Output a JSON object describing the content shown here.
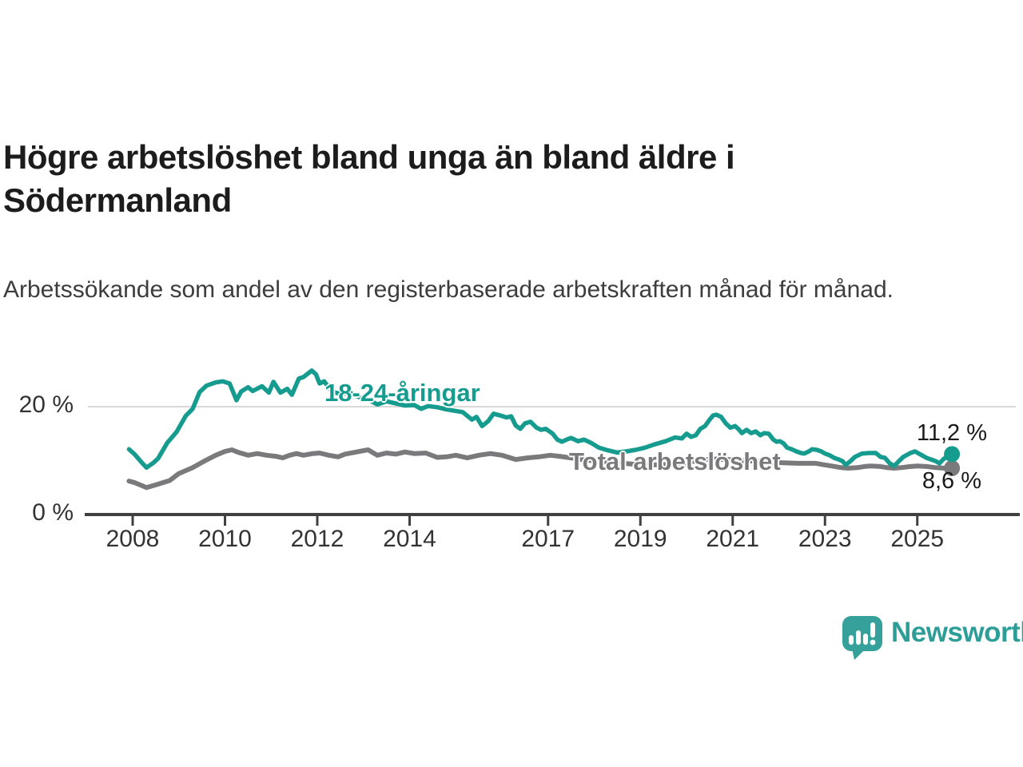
{
  "title": "Högre arbetslöshet bland unga än bland äldre i Södermanland",
  "subtitle": "Arbetssökande som andel av den registerbaserade arbetskraften månad för månad.",
  "branding": {
    "name": "Newsworthy",
    "logo_color": "#35a19a",
    "text_color": "#2d9e97"
  },
  "chart_data": {
    "type": "line",
    "title": "Högre arbetslöshet bland unga än bland äldre i Södermanland",
    "subtitle": "Arbetssökande som andel av den registerbaserade arbetskraften månad för månad.",
    "unit": "%",
    "x_range": [
      2007.9,
      2025.85
    ],
    "ylim": [
      0,
      30
    ],
    "grid": "horizontal-20-only",
    "gridlines": [
      20
    ],
    "y_ticks": [
      {
        "value": 20,
        "label": "20 %"
      },
      {
        "value": 0,
        "label": "0 %"
      }
    ],
    "x_ticks": [
      {
        "year": 2008,
        "label": "2008"
      },
      {
        "year": 2010,
        "label": "2010"
      },
      {
        "year": 2012,
        "label": "2012"
      },
      {
        "year": 2014,
        "label": "2014"
      },
      {
        "year": 2017,
        "label": "2017"
      },
      {
        "year": 2019,
        "label": "2019"
      },
      {
        "year": 2021,
        "label": "2021"
      },
      {
        "year": 2023,
        "label": "2023"
      },
      {
        "year": 2025,
        "label": "2025"
      }
    ],
    "legend_position": "inline-labels-on-lines",
    "series": [
      {
        "id": "total",
        "name": "Total arbetslöshet",
        "color": "#7a7a7c",
        "width": 6,
        "end_value": 8.6,
        "end_label": "8,6 %",
        "points": [
          [
            2007.92,
            6.2
          ],
          [
            2008.05,
            5.9
          ],
          [
            2008.3,
            5.0
          ],
          [
            2008.5,
            5.5
          ],
          [
            2008.8,
            6.3
          ],
          [
            2009.0,
            7.6
          ],
          [
            2009.3,
            8.7
          ],
          [
            2009.55,
            9.9
          ],
          [
            2009.8,
            11.0
          ],
          [
            2010.0,
            11.7
          ],
          [
            2010.15,
            12.0
          ],
          [
            2010.3,
            11.5
          ],
          [
            2010.5,
            11.0
          ],
          [
            2010.7,
            11.3
          ],
          [
            2010.9,
            11.0
          ],
          [
            2011.1,
            10.8
          ],
          [
            2011.25,
            10.5
          ],
          [
            2011.4,
            11.0
          ],
          [
            2011.55,
            11.3
          ],
          [
            2011.7,
            11.0
          ],
          [
            2011.9,
            11.3
          ],
          [
            2012.05,
            11.4
          ],
          [
            2012.25,
            11.0
          ],
          [
            2012.45,
            10.7
          ],
          [
            2012.6,
            11.2
          ],
          [
            2012.85,
            11.6
          ],
          [
            2013.1,
            12.0
          ],
          [
            2013.3,
            11.0
          ],
          [
            2013.5,
            11.4
          ],
          [
            2013.7,
            11.2
          ],
          [
            2013.9,
            11.6
          ],
          [
            2014.1,
            11.3
          ],
          [
            2014.35,
            11.4
          ],
          [
            2014.6,
            10.6
          ],
          [
            2014.8,
            10.7
          ],
          [
            2015.0,
            11.0
          ],
          [
            2015.25,
            10.5
          ],
          [
            2015.5,
            11.0
          ],
          [
            2015.75,
            11.3
          ],
          [
            2016.0,
            11.0
          ],
          [
            2016.3,
            10.2
          ],
          [
            2016.55,
            10.5
          ],
          [
            2016.8,
            10.7
          ],
          [
            2017.05,
            11.0
          ],
          [
            2017.25,
            10.8
          ],
          [
            2017.5,
            10.5
          ],
          [
            2017.8,
            10.1
          ],
          [
            2018.1,
            9.9
          ],
          [
            2018.5,
            9.6
          ],
          [
            2018.9,
            9.3
          ],
          [
            2019.3,
            9.2
          ],
          [
            2019.7,
            9.3
          ],
          [
            2020.0,
            9.6
          ],
          [
            2020.3,
            10.1
          ],
          [
            2020.6,
            10.3
          ],
          [
            2020.9,
            10.2
          ],
          [
            2021.2,
            10.0
          ],
          [
            2021.5,
            9.9
          ],
          [
            2021.8,
            9.7
          ],
          [
            2022.1,
            9.6
          ],
          [
            2022.4,
            9.5
          ],
          [
            2022.8,
            9.5
          ],
          [
            2023.0,
            9.2
          ],
          [
            2023.15,
            9.0
          ],
          [
            2023.35,
            8.7
          ],
          [
            2023.5,
            8.6
          ],
          [
            2023.7,
            8.7
          ],
          [
            2023.85,
            8.9
          ],
          [
            2024.0,
            9.0
          ],
          [
            2024.2,
            8.9
          ],
          [
            2024.35,
            8.7
          ],
          [
            2024.5,
            8.6
          ],
          [
            2024.65,
            8.7
          ],
          [
            2024.85,
            8.9
          ],
          [
            2025.0,
            9.0
          ],
          [
            2025.2,
            8.9
          ],
          [
            2025.4,
            8.7
          ],
          [
            2025.6,
            8.6
          ],
          [
            2025.75,
            8.6
          ]
        ]
      },
      {
        "id": "youth",
        "name": "18-24-åringar",
        "color": "#169b8f",
        "width": 5.5,
        "end_value": 11.2,
        "end_label": "11,2 %",
        "points": [
          [
            2007.92,
            12.1
          ],
          [
            2008.04,
            11.2
          ],
          [
            2008.2,
            9.6
          ],
          [
            2008.3,
            8.7
          ],
          [
            2008.45,
            9.6
          ],
          [
            2008.55,
            10.4
          ],
          [
            2008.75,
            13.3
          ],
          [
            2008.95,
            15.3
          ],
          [
            2009.15,
            18.3
          ],
          [
            2009.3,
            19.6
          ],
          [
            2009.45,
            22.7
          ],
          [
            2009.6,
            23.9
          ],
          [
            2009.8,
            24.5
          ],
          [
            2009.95,
            24.7
          ],
          [
            2010.1,
            24.3
          ],
          [
            2010.25,
            21.2
          ],
          [
            2010.35,
            22.8
          ],
          [
            2010.5,
            23.6
          ],
          [
            2010.6,
            22.9
          ],
          [
            2010.8,
            23.8
          ],
          [
            2010.95,
            22.6
          ],
          [
            2011.05,
            24.6
          ],
          [
            2011.2,
            22.6
          ],
          [
            2011.35,
            23.3
          ],
          [
            2011.45,
            22.2
          ],
          [
            2011.6,
            25.2
          ],
          [
            2011.7,
            25.5
          ],
          [
            2011.88,
            26.7
          ],
          [
            2011.97,
            26.0
          ],
          [
            2012.05,
            24.3
          ],
          [
            2012.15,
            24.7
          ],
          [
            2012.3,
            22.9
          ],
          [
            2012.5,
            22.3
          ],
          [
            2012.7,
            22.6
          ],
          [
            2012.9,
            21.8
          ],
          [
            2013.1,
            21.4
          ],
          [
            2013.3,
            20.4
          ],
          [
            2013.5,
            21.0
          ],
          [
            2013.7,
            20.6
          ],
          [
            2013.9,
            20.2
          ],
          [
            2014.1,
            20.3
          ],
          [
            2014.25,
            19.6
          ],
          [
            2014.4,
            20.1
          ],
          [
            2014.6,
            19.9
          ],
          [
            2014.8,
            19.5
          ],
          [
            2015.0,
            19.2
          ],
          [
            2015.15,
            19.0
          ],
          [
            2015.35,
            17.6
          ],
          [
            2015.45,
            18.1
          ],
          [
            2015.57,
            16.4
          ],
          [
            2015.7,
            17.3
          ],
          [
            2015.82,
            18.7
          ],
          [
            2015.95,
            18.4
          ],
          [
            2016.1,
            18.0
          ],
          [
            2016.2,
            18.2
          ],
          [
            2016.3,
            16.5
          ],
          [
            2016.4,
            15.9
          ],
          [
            2016.5,
            16.9
          ],
          [
            2016.62,
            17.2
          ],
          [
            2016.75,
            16.1
          ],
          [
            2016.85,
            15.7
          ],
          [
            2016.95,
            15.9
          ],
          [
            2017.1,
            15.0
          ],
          [
            2017.2,
            13.9
          ],
          [
            2017.3,
            13.5
          ],
          [
            2017.4,
            13.9
          ],
          [
            2017.5,
            14.2
          ],
          [
            2017.65,
            13.6
          ],
          [
            2017.78,
            13.9
          ],
          [
            2017.95,
            13.2
          ],
          [
            2018.1,
            12.4
          ],
          [
            2018.3,
            11.9
          ],
          [
            2018.5,
            11.5
          ],
          [
            2018.7,
            11.7
          ],
          [
            2018.9,
            12.0
          ],
          [
            2019.1,
            12.4
          ],
          [
            2019.3,
            13.0
          ],
          [
            2019.55,
            13.6
          ],
          [
            2019.75,
            14.3
          ],
          [
            2019.9,
            14.1
          ],
          [
            2020.0,
            15.0
          ],
          [
            2020.1,
            14.4
          ],
          [
            2020.2,
            14.7
          ],
          [
            2020.3,
            15.9
          ],
          [
            2020.4,
            16.4
          ],
          [
            2020.5,
            17.6
          ],
          [
            2020.58,
            18.4
          ],
          [
            2020.65,
            18.5
          ],
          [
            2020.75,
            18.1
          ],
          [
            2020.85,
            16.9
          ],
          [
            2020.95,
            16.1
          ],
          [
            2021.05,
            16.4
          ],
          [
            2021.12,
            15.9
          ],
          [
            2021.2,
            15.1
          ],
          [
            2021.3,
            15.7
          ],
          [
            2021.4,
            15.1
          ],
          [
            2021.5,
            15.4
          ],
          [
            2021.6,
            14.7
          ],
          [
            2021.68,
            15.1
          ],
          [
            2021.78,
            15.0
          ],
          [
            2021.88,
            13.9
          ],
          [
            2021.95,
            13.5
          ],
          [
            2022.02,
            13.6
          ],
          [
            2022.1,
            13.2
          ],
          [
            2022.18,
            12.4
          ],
          [
            2022.28,
            12.1
          ],
          [
            2022.38,
            11.7
          ],
          [
            2022.48,
            11.4
          ],
          [
            2022.55,
            11.3
          ],
          [
            2022.65,
            11.7
          ],
          [
            2022.72,
            12.1
          ],
          [
            2022.82,
            12.0
          ],
          [
            2022.92,
            11.7
          ],
          [
            2023.0,
            11.3
          ],
          [
            2023.1,
            11.0
          ],
          [
            2023.2,
            10.5
          ],
          [
            2023.3,
            10.2
          ],
          [
            2023.38,
            9.9
          ],
          [
            2023.45,
            9.2
          ],
          [
            2023.55,
            9.9
          ],
          [
            2023.65,
            10.7
          ],
          [
            2023.8,
            11.3
          ],
          [
            2023.95,
            11.4
          ],
          [
            2024.1,
            11.4
          ],
          [
            2024.2,
            10.7
          ],
          [
            2024.3,
            10.5
          ],
          [
            2024.4,
            9.5
          ],
          [
            2024.5,
            9.0
          ],
          [
            2024.6,
            9.9
          ],
          [
            2024.7,
            10.7
          ],
          [
            2024.85,
            11.4
          ],
          [
            2024.95,
            11.7
          ],
          [
            2025.1,
            11.0
          ],
          [
            2025.2,
            10.5
          ],
          [
            2025.3,
            10.2
          ],
          [
            2025.4,
            9.9
          ],
          [
            2025.48,
            9.5
          ],
          [
            2025.56,
            10.2
          ],
          [
            2025.65,
            10.8
          ],
          [
            2025.75,
            11.2
          ]
        ]
      }
    ],
    "colors": {
      "axis": "#404040",
      "gridline": "#d9d9d9",
      "tick_text": "#333333"
    }
  }
}
